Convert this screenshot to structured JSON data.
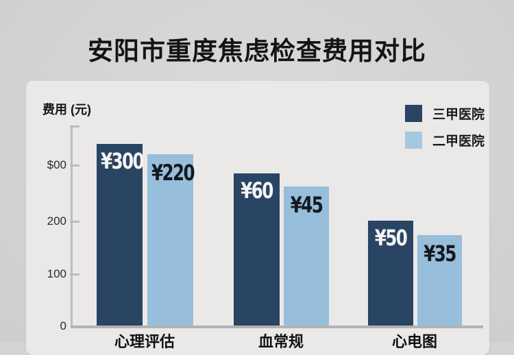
{
  "title": "安阳市重度焦虑检查费用对比",
  "panel": {
    "background": "#eae9e7"
  },
  "colors": {
    "dark_series": "#2a4463",
    "light_series": "#97bedb",
    "background": "#d5d4d2",
    "axis": "#b8b7b5"
  },
  "chart_data": {
    "type": "bar",
    "title": "安阳市重度焦虑检查费用对比",
    "ylabel": "费用 (元)",
    "xlabel": "",
    "categories": [
      "心理评估",
      "血常规",
      "心电图"
    ],
    "series": [
      {
        "name": "三甲医院",
        "color": "#2a4463",
        "values": [
          300,
          60,
          50
        ],
        "value_labels": [
          "¥300",
          "¥60",
          "¥50"
        ]
      },
      {
        "name": "二甲医院",
        "color": "#97bedb",
        "values": [
          220,
          45,
          35
        ],
        "value_labels": [
          "¥220",
          "¥45",
          "¥35"
        ]
      }
    ],
    "y_tick_labels": [
      "$00",
      "200",
      "100",
      "0"
    ],
    "ylim": [
      0,
      300
    ],
    "grid": false,
    "legend_position": "top-right",
    "note": "bar heights drawn as rendered in source image, not to numeric scale"
  }
}
